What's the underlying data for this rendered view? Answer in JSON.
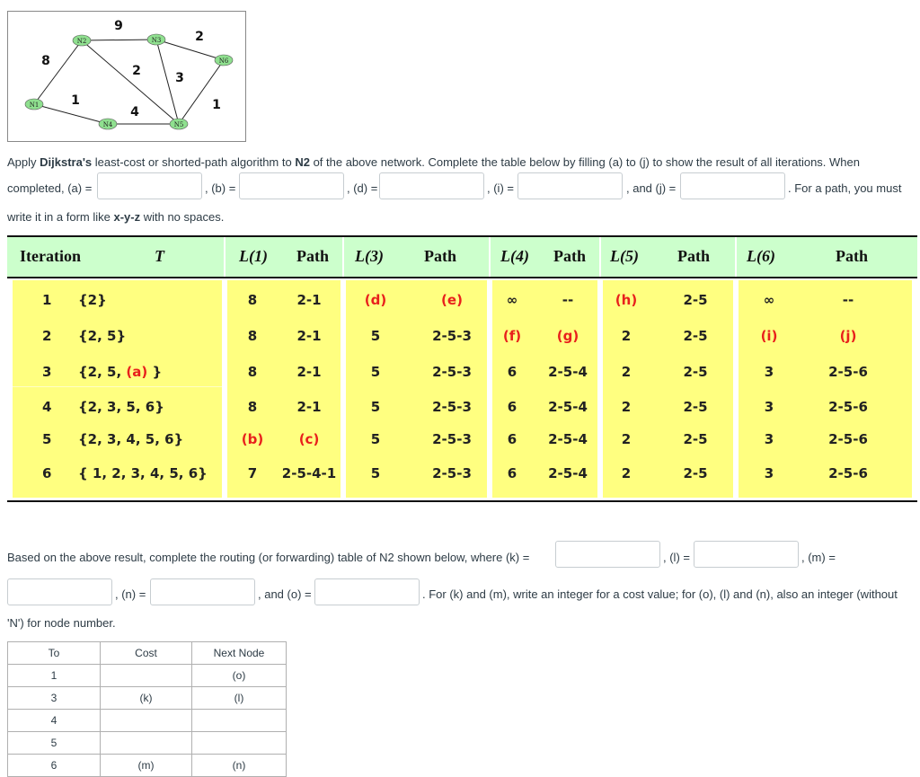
{
  "graph": {
    "nodes": [
      "N1",
      "N2",
      "N3",
      "N4",
      "N5",
      "N6"
    ],
    "edge_weights": [
      "9",
      "8",
      "2",
      "2",
      "3",
      "1",
      "4",
      "1"
    ]
  },
  "question1": {
    "pre": "Apply ",
    "algo": "Dijkstra's",
    "mid1": " least-cost or shorted-path algorithm to ",
    "node": "N2",
    "mid2": " of the above network. Complete the table below by filling (a) to (j) to show the result of all iterations. When",
    "completed": "completed, (a) =",
    "b": ", (b) =",
    "d": ", (d) =",
    "i": ", (i) =",
    "j": ", and (j) =",
    "tail": ". For a path, you must",
    "line3a": "write it in a form like ",
    "form": "x-y-z",
    "line3b": " with no spaces."
  },
  "table": {
    "headers": {
      "iteration": "Iteration",
      "t": "T",
      "l1": "L(1)",
      "p1": "Path",
      "l3": "L(3)",
      "p3": "Path",
      "l4": "L(4)",
      "p4": "Path",
      "l5": "L(5)",
      "p5": "Path",
      "l6": "L(6)",
      "p6": "Path"
    },
    "rows": [
      {
        "it": "1",
        "t": "{2}",
        "l1": "8",
        "p1": "2-1",
        "l3": "(d)",
        "p3": "(e)",
        "l4": "∞",
        "p4": "--",
        "l5": "(h)",
        "p5": "2-5",
        "l6": "∞",
        "p6": "--"
      },
      {
        "it": "2",
        "t": "{2, 5}",
        "l1": "8",
        "p1": "2-1",
        "l3": "5",
        "p3": "2-5-3",
        "l4": "(f)",
        "p4": "(g)",
        "l5": "2",
        "p5": "2-5",
        "l6": "(i)",
        "p6": "(j)"
      },
      {
        "it": "3",
        "t": "{2, 5, ",
        "ta": "(a)",
        "tb": " }",
        "l1": "8",
        "p1": "2-1",
        "l3": "5",
        "p3": "2-5-3",
        "l4": "6",
        "p4": "2-5-4",
        "l5": "2",
        "p5": "2-5",
        "l6": "3",
        "p6": "2-5-6"
      },
      {
        "it": "4",
        "t": "{2, 3, 5, 6}",
        "l1": "8",
        "p1": "2-1",
        "l3": "5",
        "p3": "2-5-3",
        "l4": "6",
        "p4": "2-5-4",
        "l5": "2",
        "p5": "2-5",
        "l6": "3",
        "p6": "2-5-6"
      },
      {
        "it": "5",
        "t": "{2, 3, 4, 5, 6}",
        "l1": "(b)",
        "p1": "(c)",
        "l3": "5",
        "p3": "2-5-3",
        "l4": "6",
        "p4": "2-5-4",
        "l5": "2",
        "p5": "2-5",
        "l6": "3",
        "p6": "2-5-6"
      },
      {
        "it": "6",
        "t": "{ 1, 2, 3, 4, 5, 6}",
        "l1": "7",
        "p1": "2-5-4-1",
        "l3": "5",
        "p3": "2-5-3",
        "l4": "6",
        "p4": "2-5-4",
        "l5": "2",
        "p5": "2-5",
        "l6": "3",
        "p6": "2-5-6"
      }
    ]
  },
  "question2": {
    "line1": "Based on the above result, complete the routing (or forwarding) table of N2 shown below, where (k) =",
    "l": ", (l) =",
    "m": ", (m) =",
    "n": ", (n) =",
    "o": ", and (o) =",
    "tail": ". For (k) and (m), write an integer for a cost value; for (o), (l) and (n), also an integer (without",
    "line3": "'N') for node number."
  },
  "routing": {
    "headers": {
      "to": "To",
      "cost": "Cost",
      "next": "Next Node"
    },
    "rows": [
      {
        "to": "1",
        "cost": "",
        "next": "(o)"
      },
      {
        "to": "3",
        "cost": "(k)",
        "next": "(l)"
      },
      {
        "to": "4",
        "cost": "",
        "next": ""
      },
      {
        "to": "5",
        "cost": "",
        "next": ""
      },
      {
        "to": "6",
        "cost": "(m)",
        "next": "(n)"
      }
    ]
  }
}
